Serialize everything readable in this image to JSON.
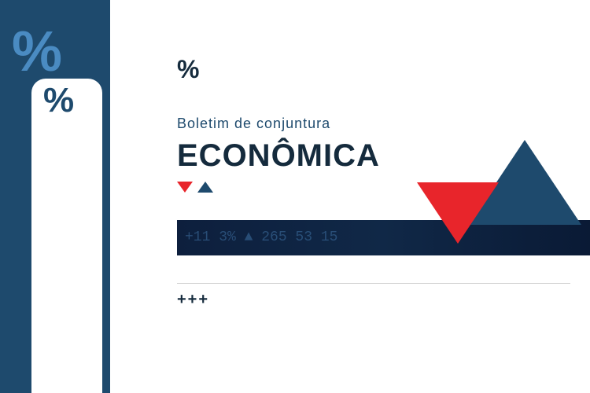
{
  "sidebar": {
    "big_percent": "%",
    "panel_percent": "%",
    "bg_color": "#1e4a6d",
    "accent_color": "#4a8bc2"
  },
  "header": {
    "small_percent": "%",
    "subtitle": "Boletim de conjuntura",
    "title": "ECONÔMICA"
  },
  "ticker": {
    "text": "  +11  3%  ▲  265  53  15",
    "bg_color": "#0d1f3d"
  },
  "indicators": {
    "down_color": "#e8252b",
    "up_color": "#1e4a6d"
  },
  "footer": {
    "plus_marks": "+++"
  },
  "colors": {
    "dark_navy": "#152b3d",
    "navy": "#1e4a6d",
    "red": "#e8252b",
    "light_blue": "#4a8bc2",
    "white": "#ffffff"
  }
}
